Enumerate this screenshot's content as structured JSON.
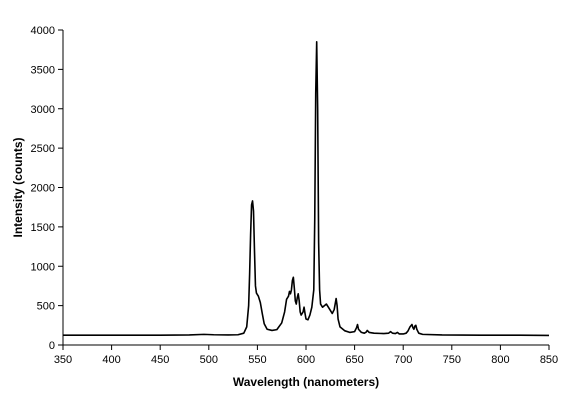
{
  "chart_data": {
    "type": "line",
    "title": "",
    "xlabel": "Wavelength (nanometers)",
    "ylabel": "Intensity (counts)",
    "xlim": [
      350,
      850
    ],
    "ylim": [
      0,
      4000
    ],
    "xticks": [
      350,
      400,
      450,
      500,
      550,
      600,
      650,
      700,
      750,
      800,
      850
    ],
    "yticks": [
      0,
      500,
      1000,
      1500,
      2000,
      2500,
      3000,
      3500,
      4000
    ],
    "grid": false,
    "legend": "none",
    "series": [
      {
        "color": "#000000",
        "points": [
          [
            350,
            125
          ],
          [
            400,
            125
          ],
          [
            450,
            125
          ],
          [
            480,
            128
          ],
          [
            495,
            135
          ],
          [
            505,
            130
          ],
          [
            520,
            128
          ],
          [
            530,
            130
          ],
          [
            536,
            150
          ],
          [
            539,
            230
          ],
          [
            541,
            500
          ],
          [
            542,
            900
          ],
          [
            543,
            1400
          ],
          [
            544,
            1780
          ],
          [
            545,
            1830
          ],
          [
            546,
            1700
          ],
          [
            547,
            1200
          ],
          [
            548,
            750
          ],
          [
            549,
            660
          ],
          [
            551,
            620
          ],
          [
            553,
            540
          ],
          [
            555,
            400
          ],
          [
            557,
            270
          ],
          [
            560,
            200
          ],
          [
            565,
            185
          ],
          [
            570,
            195
          ],
          [
            575,
            280
          ],
          [
            578,
            420
          ],
          [
            580,
            580
          ],
          [
            582,
            620
          ],
          [
            583,
            680
          ],
          [
            584,
            650
          ],
          [
            585,
            700
          ],
          [
            586,
            820
          ],
          [
            587,
            860
          ],
          [
            588,
            720
          ],
          [
            589,
            560
          ],
          [
            590,
            520
          ],
          [
            591,
            600
          ],
          [
            592,
            650
          ],
          [
            593,
            560
          ],
          [
            594,
            420
          ],
          [
            595,
            380
          ],
          [
            597,
            420
          ],
          [
            598,
            480
          ],
          [
            599,
            400
          ],
          [
            600,
            330
          ],
          [
            602,
            320
          ],
          [
            604,
            380
          ],
          [
            606,
            480
          ],
          [
            608,
            700
          ],
          [
            609,
            1600
          ],
          [
            610,
            3200
          ],
          [
            611,
            3850
          ],
          [
            612,
            3000
          ],
          [
            613,
            1300
          ],
          [
            614,
            700
          ],
          [
            615,
            520
          ],
          [
            617,
            480
          ],
          [
            619,
            500
          ],
          [
            621,
            520
          ],
          [
            623,
            480
          ],
          [
            625,
            440
          ],
          [
            627,
            400
          ],
          [
            629,
            450
          ],
          [
            630,
            520
          ],
          [
            631,
            590
          ],
          [
            632,
            500
          ],
          [
            633,
            330
          ],
          [
            635,
            230
          ],
          [
            640,
            180
          ],
          [
            645,
            160
          ],
          [
            650,
            170
          ],
          [
            652,
            220
          ],
          [
            653,
            260
          ],
          [
            654,
            200
          ],
          [
            657,
            160
          ],
          [
            660,
            150
          ],
          [
            662,
            165
          ],
          [
            663,
            185
          ],
          [
            665,
            160
          ],
          [
            670,
            150
          ],
          [
            680,
            145
          ],
          [
            685,
            150
          ],
          [
            687,
            170
          ],
          [
            689,
            150
          ],
          [
            692,
            145
          ],
          [
            694,
            160
          ],
          [
            696,
            140
          ],
          [
            700,
            140
          ],
          [
            703,
            150
          ],
          [
            705,
            180
          ],
          [
            707,
            230
          ],
          [
            709,
            260
          ],
          [
            710,
            220
          ],
          [
            711,
            200
          ],
          [
            712,
            240
          ],
          [
            713,
            250
          ],
          [
            714,
            200
          ],
          [
            716,
            150
          ],
          [
            720,
            135
          ],
          [
            740,
            128
          ],
          [
            780,
            125
          ],
          [
            820,
            125
          ],
          [
            850,
            122
          ]
        ]
      }
    ]
  }
}
